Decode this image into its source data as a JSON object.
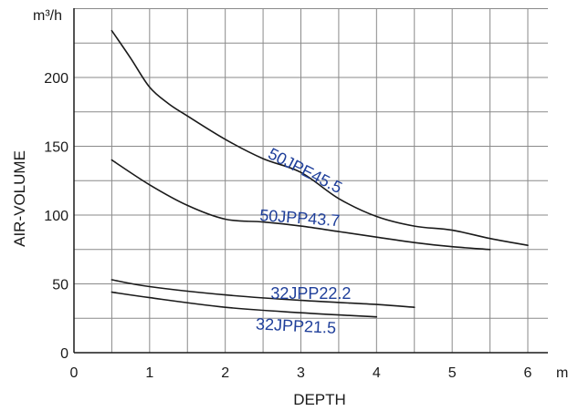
{
  "chart_data": {
    "type": "line",
    "xlabel": "DEPTH",
    "ylabel": "AIR-VOLUME",
    "x_unit": "m",
    "y_unit": "m³/h",
    "xlim": [
      0,
      6.5
    ],
    "ylim": [
      0,
      250
    ],
    "x_ticks": [
      "0",
      "1",
      "2",
      "3",
      "4",
      "5",
      "6"
    ],
    "y_ticks": [
      "0",
      "50",
      "100",
      "150",
      "200"
    ],
    "grid": true,
    "series": [
      {
        "name": "50JPE45.5",
        "x": [
          0.5,
          0.75,
          1.0,
          1.25,
          1.5,
          2.0,
          2.5,
          3.0,
          3.5,
          4.0,
          4.5,
          5.0,
          5.5,
          6.0
        ],
        "y": [
          234,
          214,
          193,
          181,
          172,
          155,
          141,
          131,
          112,
          99,
          92,
          89,
          83,
          78
        ]
      },
      {
        "name": "50JPP43.7",
        "x": [
          0.5,
          1.0,
          1.5,
          2.0,
          2.5,
          3.0,
          3.5,
          4.0,
          4.5,
          5.0,
          5.5
        ],
        "y": [
          140,
          122,
          107,
          97,
          95,
          92,
          88,
          84,
          80,
          77,
          75
        ]
      },
      {
        "name": "32JPP22.2",
        "x": [
          0.5,
          1.0,
          2.0,
          3.0,
          4.0,
          4.5
        ],
        "y": [
          53,
          48,
          42,
          38,
          35,
          33
        ]
      },
      {
        "name": "32JPP21.5",
        "x": [
          0.5,
          1.0,
          2.0,
          3.0,
          4.0
        ],
        "y": [
          44,
          40,
          33,
          29,
          26
        ]
      }
    ]
  }
}
